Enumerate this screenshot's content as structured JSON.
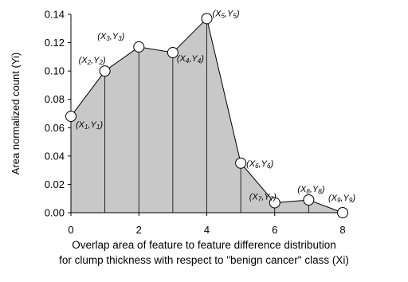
{
  "chart_data": {
    "type": "area",
    "x": [
      0,
      1,
      2,
      3,
      4,
      5,
      6,
      7,
      8
    ],
    "y": [
      0.068,
      0.1,
      0.117,
      0.113,
      0.137,
      0.035,
      0.007,
      0.009,
      0.0
    ],
    "point_labels": [
      "(X1,Y1)",
      "(X2,Y2)",
      "(X3,Y3)",
      "(X4,Y4)",
      "(X5,Y5)",
      "(X6,Y6)",
      "(X7,Y7)",
      "(X8,Y8)",
      "(X9,Y9)"
    ],
    "x_ticks": [
      "0",
      "2",
      "4",
      "6",
      "8"
    ],
    "y_ticks": [
      "0.00",
      "0.02",
      "0.04",
      "0.06",
      "0.08",
      "0.10",
      "0.12",
      "0.14"
    ],
    "xlim": [
      0,
      8
    ],
    "ylim": [
      0,
      0.14
    ],
    "ylabel": "Area normalized count (Yi)",
    "xlabel_line1": "Overlap area of feature to feature difference distribution",
    "xlabel_line2": "for clump thickness with respect to \"benign cancer\" class (Xi)",
    "fill_color": "#c8c8c8",
    "grid": false
  }
}
